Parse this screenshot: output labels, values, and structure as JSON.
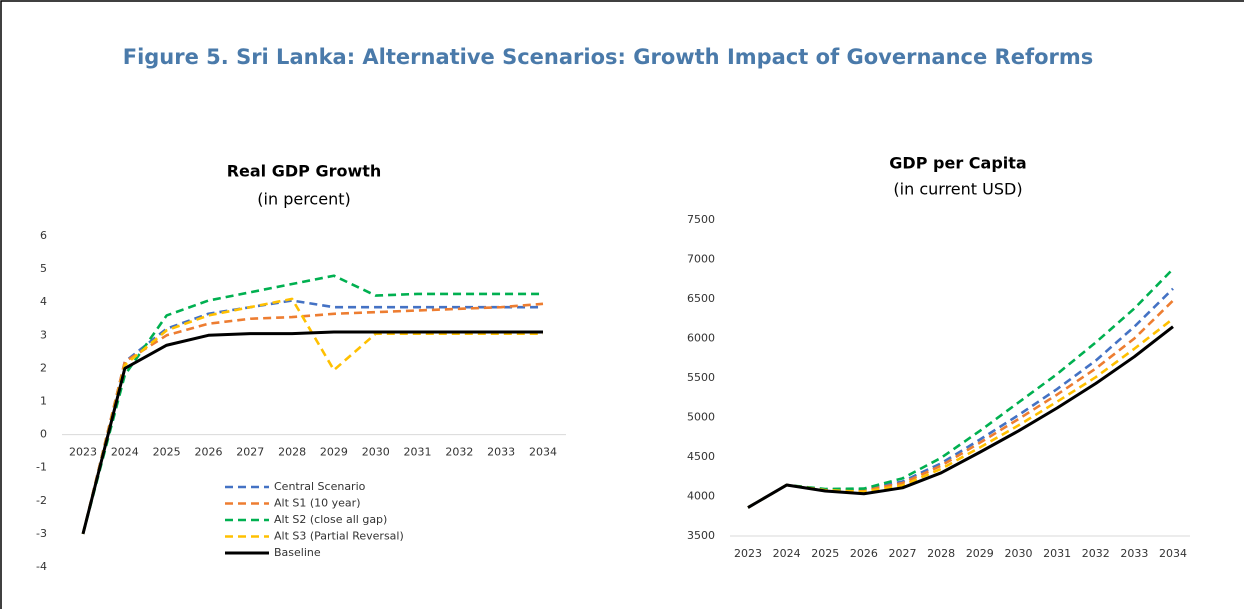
{
  "title": "Figure 5. Sri Lanka: Alternative Scenarios: Growth Impact of Governance Reforms",
  "chart_data": [
    {
      "type": "line",
      "title": "Real GDP Growth",
      "subtitle": "(in percent)",
      "categories": [
        "2023",
        "2024",
        "2025",
        "2026",
        "2027",
        "2028",
        "2029",
        "2030",
        "2031",
        "2032",
        "2033",
        "2034"
      ],
      "ylim": [
        -4,
        6
      ],
      "yticks": [
        -4,
        -3,
        -2,
        -1,
        0,
        1,
        2,
        3,
        4,
        5,
        6
      ],
      "legend": "bottom",
      "series": [
        {
          "name": "Central Scenario",
          "color": "#4472c4",
          "dashed": true,
          "values": [
            -3,
            2.2,
            3.2,
            3.65,
            3.85,
            4.05,
            3.85,
            3.85,
            3.85,
            3.85,
            3.85,
            3.85
          ]
        },
        {
          "name": "Alt S1 (10 year)",
          "color": "#ed7d31",
          "dashed": true,
          "values": [
            -3,
            2.2,
            3.0,
            3.35,
            3.5,
            3.55,
            3.65,
            3.7,
            3.75,
            3.8,
            3.85,
            3.95
          ]
        },
        {
          "name": "Alt S2 (close all gap)",
          "color": "#00b050",
          "dashed": true,
          "values": [
            -3,
            1.8,
            3.6,
            4.05,
            4.3,
            4.55,
            4.8,
            4.2,
            4.25,
            4.25,
            4.25,
            4.25
          ]
        },
        {
          "name": "Alt S3 (Partial Reversal)",
          "color": "#ffc000",
          "dashed": true,
          "values": [
            -3,
            2.1,
            3.15,
            3.6,
            3.85,
            4.1,
            1.95,
            3.05,
            3.05,
            3.05,
            3.05,
            3.05
          ]
        },
        {
          "name": "Baseline",
          "color": "#000000",
          "dashed": false,
          "values": [
            -3,
            2.0,
            2.7,
            3.0,
            3.05,
            3.05,
            3.1,
            3.1,
            3.1,
            3.1,
            3.1,
            3.1
          ]
        }
      ]
    },
    {
      "type": "line",
      "title": "GDP per Capita",
      "subtitle": "(in current USD)",
      "categories": [
        "2023",
        "2024",
        "2025",
        "2026",
        "2027",
        "2028",
        "2029",
        "2030",
        "2031",
        "2032",
        "2033",
        "2034"
      ],
      "ylim": [
        3500,
        7500
      ],
      "yticks": [
        3500,
        4000,
        4500,
        5000,
        5500,
        6000,
        6500,
        7000,
        7500
      ],
      "series": [
        {
          "color": "#4472c4",
          "dashed": true,
          "values": [
            3860,
            4145,
            4090,
            4090,
            4190,
            4420,
            4720,
            5030,
            5360,
            5720,
            6150,
            6630
          ]
        },
        {
          "color": "#ed7d31",
          "dashed": true,
          "values": [
            3860,
            4145,
            4085,
            4075,
            4170,
            4390,
            4680,
            4980,
            5290,
            5620,
            6000,
            6480
          ]
        },
        {
          "color": "#00b050",
          "dashed": true,
          "values": [
            3860,
            4145,
            4095,
            4100,
            4230,
            4490,
            4830,
            5190,
            5550,
            5950,
            6380,
            6880
          ]
        },
        {
          "color": "#ffc000",
          "dashed": true,
          "values": [
            3860,
            4145,
            4080,
            4060,
            4140,
            4350,
            4620,
            4900,
            5200,
            5510,
            5870,
            6250
          ]
        },
        {
          "color": "#000000",
          "dashed": false,
          "values": [
            3860,
            4145,
            4070,
            4035,
            4110,
            4300,
            4560,
            4830,
            5120,
            5430,
            5770,
            6150
          ]
        }
      ]
    }
  ]
}
